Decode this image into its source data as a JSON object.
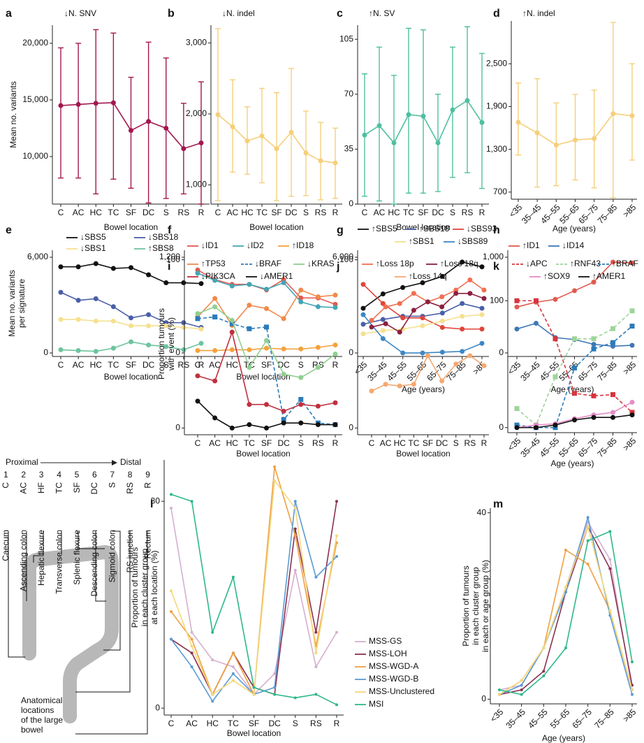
{
  "chart_data": [
    {
      "type": "line",
      "panel": "a",
      "title": "↓N. SNV",
      "ylabel": [
        "Mean no. variants"
      ],
      "xlabel": "Bowel location",
      "color": "#a3174f",
      "categories": [
        "C",
        "AC",
        "HC",
        "TC",
        "SF",
        "DC",
        "S",
        "RS",
        "R"
      ],
      "values": [
        14500,
        14600,
        14700,
        14750,
        12300,
        13100,
        12500,
        10700,
        11200
      ],
      "lower": [
        8100,
        8100,
        6700,
        8000,
        7200,
        5900,
        6300,
        6700,
        5800
      ],
      "upper": [
        19600,
        20000,
        21200,
        20900,
        17000,
        20100,
        18700,
        14700,
        16600
      ],
      "ylim": [
        5800,
        21600
      ],
      "yticks": [
        {
          "value": 10000,
          "label": "10,000"
        },
        {
          "value": 15000,
          "label": "15,000"
        },
        {
          "value": 20000,
          "label": "20,000"
        }
      ]
    },
    {
      "type": "line",
      "panel": "b",
      "title": "↓N. indel",
      "xlabel": "Bowel location",
      "color": "#f5cf7a",
      "categories": [
        "C",
        "AC",
        "HC",
        "TC",
        "SF",
        "DC",
        "S",
        "RS",
        "R"
      ],
      "values": [
        1990,
        1820,
        1620,
        1690,
        1510,
        1740,
        1450,
        1340,
        1310
      ],
      "lower": [
        780,
        1180,
        1150,
        1030,
        780,
        840,
        850,
        790,
        810
      ],
      "upper": [
        3200,
        2480,
        2100,
        2360,
        2300,
        2640,
        2040,
        1880,
        1800
      ],
      "ylim": [
        730,
        3250
      ],
      "yticks": [
        {
          "value": 1000,
          "label": "1,000"
        },
        {
          "value": 2000,
          "label": "2,000"
        },
        {
          "value": 3000,
          "label": "3,000"
        }
      ]
    },
    {
      "type": "line",
      "panel": "c",
      "title": "↑N. SV",
      "xlabel": "Bowel location",
      "color": "#4fbfa0",
      "categories": [
        "C",
        "AC",
        "HC",
        "TC",
        "SF",
        "DC",
        "S",
        "RS",
        "R"
      ],
      "values": [
        44,
        50,
        39,
        57,
        56,
        39,
        60,
        66,
        52
      ],
      "lower": [
        5,
        2,
        0,
        7,
        7,
        8,
        17,
        20,
        10
      ],
      "upper": [
        83,
        100,
        82,
        112,
        111,
        70,
        100,
        113,
        96
      ],
      "ylim": [
        0,
        114
      ],
      "yticks": [
        0,
        35,
        70,
        105
      ]
    },
    {
      "type": "line",
      "panel": "d",
      "title": "↑N. indel",
      "xlabel": "Age (years)",
      "color": "#f5cf7a",
      "categories": [
        "<35",
        "35–45",
        "45–55",
        "55–65",
        "65–75",
        "75–85",
        ">85"
      ],
      "values": [
        1680,
        1530,
        1360,
        1430,
        1450,
        1800,
        1770
      ],
      "lower": [
        1220,
        770,
        790,
        870,
        760,
        620,
        1150
      ],
      "upper": [
        2230,
        2290,
        1950,
        2070,
        2130,
        3080,
        2500
      ],
      "ylim": [
        600,
        3100
      ],
      "yticks": [
        700,
        {
          "value": 1300,
          "label": "1,300"
        },
        {
          "value": 1900,
          "label": "1,900"
        },
        {
          "value": 2500,
          "label": "2,500"
        }
      ]
    },
    {
      "type": "line",
      "panel": "e",
      "ylabel": [
        "Mean no. variants",
        "per signature"
      ],
      "xlabel": "Bowel location",
      "legend": true,
      "categories": [
        "C",
        "AC",
        "HC",
        "TC",
        "SF",
        "DC",
        "S",
        "RS",
        "R"
      ],
      "series": [
        {
          "name": "↓SBS5",
          "color": "#111111",
          "values": [
            5400,
            5400,
            5600,
            5300,
            5350,
            4900,
            4400,
            4400,
            4350
          ]
        },
        {
          "name": "↓SBS18",
          "color": "#4a5fa8",
          "values": [
            3800,
            3300,
            3400,
            2900,
            2200,
            2400,
            1900,
            1900,
            1600
          ]
        },
        {
          "name": "↓SBS1",
          "color": "#f5e08f",
          "values": [
            2100,
            2100,
            2000,
            2000,
            1700,
            1700,
            1700,
            1600,
            1500
          ]
        },
        {
          "name": "↑SBS8",
          "color": "#6cc49e",
          "values": [
            200,
            150,
            100,
            300,
            700,
            500,
            400,
            200,
            600
          ]
        }
      ],
      "ylim": [
        -220,
        6440
      ],
      "yticks": [
        0,
        {
          "value": 6000,
          "label": "6,000"
        }
      ]
    },
    {
      "type": "line",
      "panel": "f",
      "xlabel": "Bowel location",
      "legend": true,
      "categories": [
        "C",
        "AC",
        "HC",
        "TC",
        "SF",
        "DC",
        "S",
        "RS",
        "R"
      ],
      "series": [
        {
          "name": "↓ID1",
          "color": "#e05a4f",
          "values": [
            1040,
            920,
            860,
            860,
            790,
            920,
            690,
            690,
            610
          ]
        },
        {
          "name": "↓ID2",
          "color": "#45a5b5",
          "values": [
            1000,
            910,
            840,
            860,
            800,
            880,
            640,
            580,
            570
          ]
        },
        {
          "name": "↑ID18",
          "color": "#f4a23c",
          "values": [
            30,
            30,
            40,
            40,
            60,
            50,
            50,
            70,
            100
          ]
        }
      ],
      "ylim": [
        -44,
        1288
      ],
      "yticks": [
        0,
        {
          "value": 1200,
          "label": "1,200"
        }
      ]
    },
    {
      "type": "line",
      "panel": "g",
      "xlabel": "Age (years)",
      "legend": true,
      "categories": [
        "<35",
        "35–45",
        "45–55",
        "55–65",
        "65–75",
        "75–85",
        ">85"
      ],
      "series": [
        {
          "name": "↑SBS5",
          "color": "#111111",
          "values": [
            2800,
            3700,
            4100,
            4400,
            4800,
            5700,
            5400
          ]
        },
        {
          "name": "↑SBS18",
          "color": "#4a5fa8",
          "values": [
            1800,
            2100,
            2300,
            2300,
            2500,
            3100,
            2800
          ]
        },
        {
          "name": "↓SBS93",
          "color": "#e0453a",
          "values": [
            4300,
            3100,
            2200,
            2200,
            1600,
            1500,
            1500
          ]
        },
        {
          "name": "↑SBS1",
          "color": "#f5e08f",
          "values": [
            1200,
            1400,
            1500,
            1700,
            2000,
            2300,
            2400
          ]
        },
        {
          "name": "↓SBS89",
          "color": "#3d87c4",
          "values": [
            2400,
            900,
            0,
            0,
            50,
            100,
            600
          ]
        }
      ],
      "ylim": [
        -220,
        6440
      ],
      "yticks": [
        0,
        {
          "value": 6000,
          "label": "6,000"
        }
      ]
    },
    {
      "type": "line",
      "panel": "h",
      "xlabel": "Age (years)",
      "legend": true,
      "categories": [
        "<35",
        "35–45",
        "45–55",
        "55–65",
        "65–75",
        "75–85",
        ">85"
      ],
      "series": [
        {
          "name": "↑ID1",
          "color": "#e05a4f",
          "values": [
            480,
            530,
            560,
            650,
            740,
            950,
            940
          ]
        },
        {
          "name": "↓ID14",
          "color": "#3d78b4",
          "values": [
            250,
            310,
            160,
            140,
            90,
            70,
            80
          ]
        }
      ],
      "ylim": [
        -37,
        1073
      ],
      "yticks": [
        0,
        {
          "value": 1000,
          "label": "1,000"
        }
      ]
    },
    {
      "type": "line",
      "panel": "i",
      "ylabel": [
        "Proportion tumours",
        "with event (%)"
      ],
      "xlabel": "Bowel location",
      "legend": true,
      "categories": [
        "C",
        "AC",
        "HC",
        "TC",
        "SF",
        "DC",
        "S",
        "RS",
        "R"
      ],
      "series": [
        {
          "name": "↑TP53",
          "color": "#f08a4b",
          "values": [
            66,
            77,
            61,
            73,
            71,
            65,
            82,
            78,
            79
          ]
        },
        {
          "name": "↓BRAF",
          "color": "#2b7bba",
          "dash": true,
          "marker": "square",
          "values": [
            65,
            66,
            62,
            59,
            60,
            5,
            17,
            3,
            2
          ]
        },
        {
          "name": "↓KRAS",
          "color": "#8fcf8f",
          "values": [
            68,
            72,
            64,
            36,
            52,
            32,
            30,
            36,
            44
          ]
        },
        {
          "name": "↓PIK3CA",
          "color": "#c0303f",
          "values": [
            31,
            28,
            57,
            14,
            14,
            10,
            14,
            13,
            15
          ]
        },
        {
          "name": "↓AMER1",
          "color": "#111111",
          "values": [
            16,
            6,
            0,
            2,
            0,
            3,
            3,
            2,
            2
          ]
        }
      ],
      "ylim": [
        -4,
        104
      ],
      "yticks": [
        0,
        100
      ]
    },
    {
      "type": "line",
      "panel": "j",
      "xlabel": "Bowel location",
      "legend": true,
      "categories": [
        "C",
        "AC",
        "HC",
        "TC",
        "SF",
        "DC",
        "S",
        "RS",
        "R"
      ],
      "series": [
        {
          "name": "↑Loss 18p",
          "color": "#f07050",
          "values": [
            64,
            72,
            74,
            80,
            75,
            78,
            82,
            88,
            82
          ]
        },
        {
          "name": "↑Loss 18q",
          "color": "#8b2040",
          "values": [
            60,
            62,
            57,
            70,
            75,
            72,
            80,
            80,
            77
          ]
        },
        {
          "name": "↑Loss 14q",
          "color": "#f5a870",
          "values": [
            22,
            26,
            25,
            26,
            43,
            28,
            38,
            43,
            37
          ]
        }
      ],
      "ylim": [
        -4,
        104
      ],
      "yticks": [
        0,
        100
      ]
    },
    {
      "type": "line",
      "panel": "k",
      "xlabel": "Age (years)",
      "legend": true,
      "categories": [
        "<35",
        "35–45",
        "45–55",
        "55–65",
        "65–75",
        "75–85",
        ">85"
      ],
      "series": [
        {
          "name": "↓APC",
          "color": "#d8343e",
          "dash": true,
          "marker": "square",
          "values": [
            100,
            100,
            70,
            27,
            25,
            26,
            12
          ]
        },
        {
          "name": "↑RNF43",
          "color": "#9ed49a",
          "dash": true,
          "marker": "square",
          "values": [
            15,
            2,
            40,
            70,
            70,
            78,
            92
          ]
        },
        {
          "name": "↑BRAF",
          "color": "#2b7bba",
          "dash": true,
          "marker": "square",
          "values": [
            2,
            0,
            0,
            47,
            62,
            67,
            80
          ]
        },
        {
          "name": "↑SOX9",
          "color": "#e58cc6",
          "values": [
            0,
            2,
            3,
            7,
            10,
            12,
            20
          ]
        },
        {
          "name": "↑AMER1",
          "color": "#111111",
          "values": [
            0,
            0,
            2,
            6,
            8,
            8,
            10
          ]
        }
      ],
      "ylim": [
        -4,
        104
      ],
      "yticks": [
        0,
        100
      ]
    },
    {
      "type": "line",
      "panel": "l",
      "ylabel": [
        "Proportion of tumours",
        "in each cluster group",
        "at each location (%)"
      ],
      "xlabel": "Bowel location",
      "legend": true,
      "categories": [
        "C",
        "AC",
        "HC",
        "TC",
        "SF",
        "DC",
        "S",
        "RS",
        "R"
      ],
      "series": [
        {
          "name": "MSS-GS",
          "color": "#d4b0d0",
          "values": [
            29,
            11,
            7,
            6,
            2,
            5,
            20,
            6,
            11
          ]
        },
        {
          "name": "MSS-LOH",
          "color": "#8b3050",
          "values": [
            10,
            8,
            2,
            8,
            3,
            2,
            26,
            11,
            30
          ]
        },
        {
          "name": "MSS-WGD-A",
          "color": "#f0a040",
          "values": [
            14,
            10,
            2,
            8,
            2,
            35,
            25,
            9,
            24
          ]
        },
        {
          "name": "MSS-WGD-B",
          "color": "#5b9bd5",
          "values": [
            10,
            6,
            1,
            5,
            2,
            3,
            30,
            19,
            22
          ]
        },
        {
          "name": "MSS-Unclustered",
          "color": "#f5d87a",
          "values": [
            17,
            9,
            2,
            4,
            2,
            33,
            29,
            8,
            25
          ]
        },
        {
          "name": "MSI",
          "color": "#2db88a",
          "values": [
            31,
            30,
            11,
            19,
            3,
            2,
            1.5,
            2,
            0.5
          ]
        }
      ],
      "ylim": [
        -1,
        36
      ],
      "yticks": [
        0,
        30
      ]
    },
    {
      "type": "line",
      "panel": "m",
      "ylabel": [
        "Proportion of tumours",
        "in each cluster group",
        "in each or age group (%)"
      ],
      "xlabel": "Age (years)",
      "categories": [
        "<35",
        "35–45",
        "45–55",
        "55–65",
        "65–75",
        "75–85",
        ">85"
      ],
      "series": [
        {
          "color": "#d4b0d0",
          "values": [
            2,
            3,
            11,
            24,
            38,
            30,
            2
          ]
        },
        {
          "color": "#8b3050",
          "values": [
            1,
            2,
            6,
            23,
            37,
            28,
            3
          ]
        },
        {
          "color": "#f0a040",
          "values": [
            1,
            4,
            11,
            32,
            29,
            19,
            2
          ]
        },
        {
          "color": "#5b9bd5",
          "values": [
            1,
            3,
            11,
            23,
            39,
            18,
            1
          ]
        },
        {
          "color": "#f5d87a",
          "values": [
            1,
            4,
            11,
            24,
            37,
            19,
            2
          ]
        },
        {
          "color": "#2db88a",
          "values": [
            2,
            1,
            5,
            11,
            34,
            36,
            8
          ]
        }
      ],
      "ylim": [
        -1,
        41
      ],
      "yticks": [
        0,
        40
      ]
    }
  ],
  "diagram": {
    "proximal": "Proximal",
    "distal": "Distal",
    "numbers": [
      "1",
      "2",
      "3",
      "4",
      "5",
      "6",
      "7",
      "8",
      "9"
    ],
    "codes": [
      "C",
      "AC",
      "HF",
      "TC",
      "SF",
      "DC",
      "S",
      "RS",
      "R"
    ],
    "names": [
      "Caecum",
      "Ascending colon",
      "Hepatic flexure",
      "Transverse colon",
      "Splenic flexure",
      "Descending colon",
      "Sigmoid colon",
      "RS junction",
      "Rectum"
    ],
    "caption": [
      "Anatomical",
      "locations",
      "of the large",
      "bowel"
    ]
  }
}
